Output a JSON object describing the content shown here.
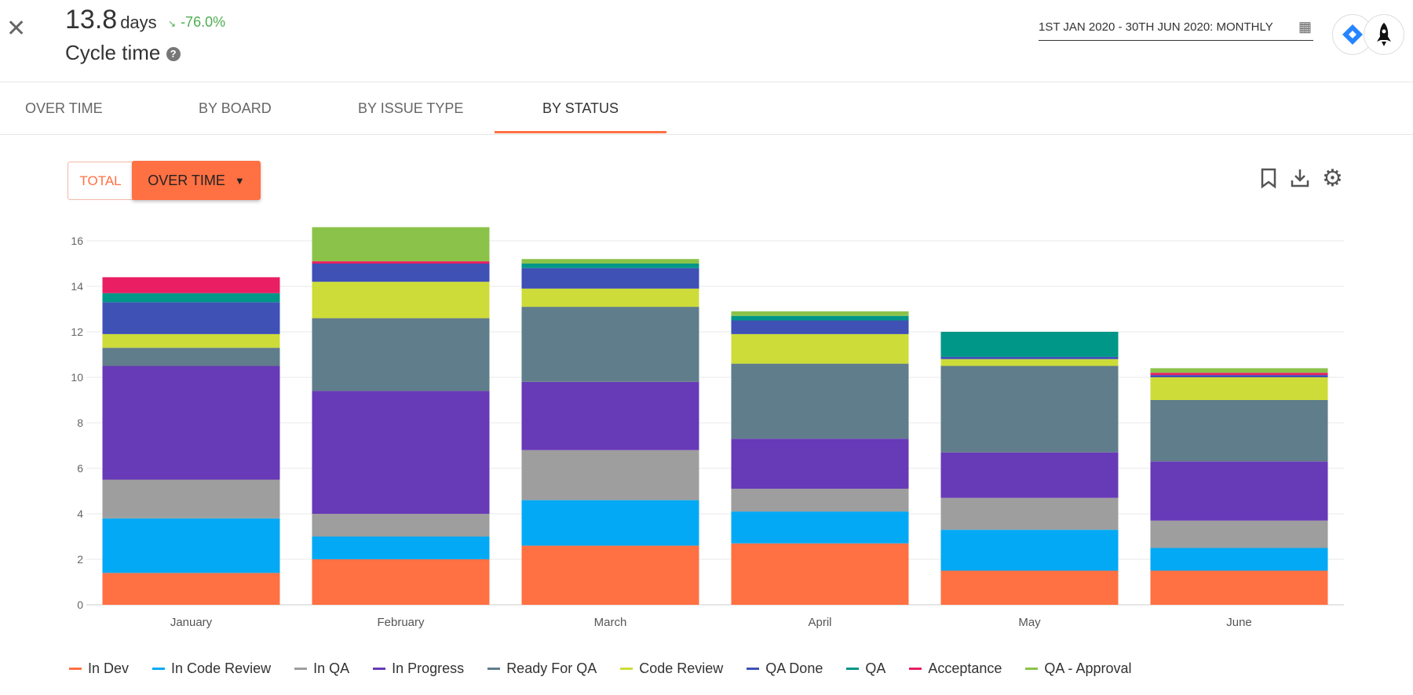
{
  "header": {
    "metric_value": "13.8",
    "metric_unit": "days",
    "trend": "-76.0%",
    "trend_icon": "trending-down-icon",
    "title": "Cycle time",
    "help": "?",
    "date_range": "1ST JAN 2020 - 30TH JUN 2020: MONTHLY"
  },
  "tabs": [
    {
      "label": "OVER TIME"
    },
    {
      "label": "BY BOARD"
    },
    {
      "label": "BY ISSUE TYPE"
    },
    {
      "label": "BY STATUS",
      "active": true
    }
  ],
  "toggle": {
    "total": "TOTAL",
    "over_time": "OVER TIME"
  },
  "colors": {
    "accent": "#ff7043",
    "trend": "#4caf50"
  },
  "chart_data": {
    "type": "bar",
    "stacked": true,
    "categories": [
      "January",
      "February",
      "March",
      "April",
      "May",
      "June"
    ],
    "ylim": [
      0,
      17
    ],
    "yticks": [
      0,
      2,
      4,
      6,
      8,
      10,
      12,
      14,
      16
    ],
    "grid": true,
    "legend": "bottom",
    "series": [
      {
        "name": "In Dev",
        "color": "#ff7043",
        "values": [
          1.4,
          2.0,
          2.6,
          2.7,
          1.5,
          1.5
        ]
      },
      {
        "name": "In Code Review",
        "color": "#03a9f4",
        "values": [
          2.4,
          1.0,
          2.0,
          1.4,
          1.8,
          1.0
        ]
      },
      {
        "name": "In QA",
        "color": "#9e9e9e",
        "values": [
          1.7,
          1.0,
          2.2,
          1.0,
          1.4,
          1.2
        ]
      },
      {
        "name": "In Progress",
        "color": "#673ab7",
        "values": [
          5.0,
          5.4,
          3.0,
          2.2,
          2.0,
          2.6
        ]
      },
      {
        "name": "Ready For QA",
        "color": "#607d8b",
        "values": [
          0.8,
          3.2,
          3.3,
          3.3,
          3.8,
          2.7
        ]
      },
      {
        "name": "Code Review",
        "color": "#cddc39",
        "values": [
          0.6,
          1.6,
          0.8,
          1.3,
          0.3,
          1.0
        ]
      },
      {
        "name": "QA Done",
        "color": "#3f51b5",
        "values": [
          1.4,
          0.8,
          0.9,
          0.6,
          0.1,
          0.1
        ]
      },
      {
        "name": "QA",
        "color": "#009688",
        "values": [
          0.4,
          0.0,
          0.2,
          0.2,
          1.1,
          0.0
        ]
      },
      {
        "name": "Acceptance",
        "color": "#e91e63",
        "values": [
          0.7,
          0.1,
          0.0,
          0.0,
          0.0,
          0.1
        ]
      },
      {
        "name": "QA - Approval",
        "color": "#8bc34a",
        "values": [
          0.0,
          1.5,
          0.2,
          0.2,
          0.0,
          0.2
        ]
      }
    ]
  }
}
